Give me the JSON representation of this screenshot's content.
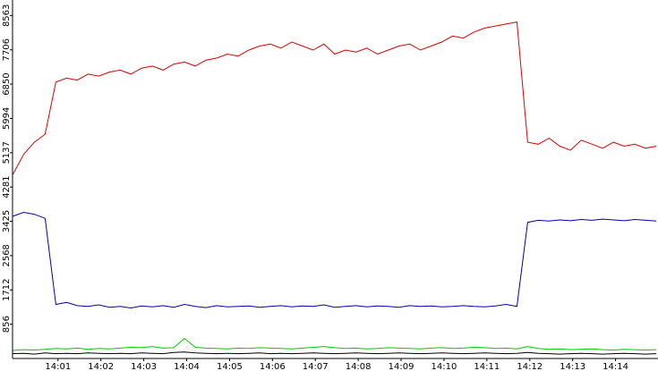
{
  "chart_data": {
    "type": "line",
    "x": [
      -0.05,
      0.2,
      0.45,
      0.7,
      0.95,
      1.2,
      1.45,
      1.7,
      1.95,
      2.2,
      2.45,
      2.7,
      2.95,
      3.2,
      3.45,
      3.7,
      3.95,
      4.2,
      4.45,
      4.7,
      4.95,
      5.2,
      5.45,
      5.7,
      5.95,
      6.2,
      6.45,
      6.7,
      6.95,
      7.2,
      7.45,
      7.7,
      7.95,
      8.2,
      8.45,
      8.7,
      8.95,
      9.2,
      9.45,
      9.7,
      9.95,
      10.2,
      10.45,
      10.7,
      10.95,
      11.2,
      11.45,
      11.7,
      11.95,
      12.2,
      12.45,
      12.7,
      12.95,
      13.2,
      13.45,
      13.7,
      13.95,
      14.2,
      14.45,
      14.7,
      14.95
    ],
    "series": [
      {
        "color": "#e00000",
        "values": [
          4600,
          5100,
          5400,
          5600,
          6900,
          7000,
          6950,
          7100,
          7050,
          7150,
          7200,
          7100,
          7250,
          7300,
          7200,
          7350,
          7400,
          7300,
          7450,
          7500,
          7600,
          7550,
          7700,
          7800,
          7850,
          7750,
          7900,
          7800,
          7700,
          7850,
          7600,
          7700,
          7650,
          7750,
          7600,
          7700,
          7800,
          7850,
          7700,
          7800,
          7900,
          8050,
          8000,
          8150,
          8250,
          8300,
          8350,
          8400,
          5400,
          5350,
          5500,
          5300,
          5200,
          5450,
          5350,
          5250,
          5400,
          5300,
          5350,
          5250,
          5300
        ]
      },
      {
        "color": "#0000b0",
        "values": [
          3550,
          3650,
          3600,
          3500,
          1350,
          1400,
          1320,
          1300,
          1340,
          1280,
          1300,
          1260,
          1310,
          1290,
          1320,
          1280,
          1350,
          1300,
          1270,
          1320,
          1290,
          1300,
          1310,
          1280,
          1300,
          1320,
          1290,
          1310,
          1300,
          1340,
          1280,
          1300,
          1320,
          1290,
          1310,
          1300,
          1280,
          1320,
          1300,
          1310,
          1290,
          1300,
          1320,
          1300,
          1290,
          1310,
          1350,
          1300,
          3400,
          3450,
          3430,
          3460,
          3440,
          3470,
          3450,
          3480,
          3460,
          3440,
          3470,
          3450,
          3430
        ]
      },
      {
        "color": "#00cc00",
        "values": [
          200,
          220,
          210,
          230,
          250,
          240,
          260,
          230,
          250,
          240,
          260,
          280,
          270,
          300,
          260,
          270,
          500,
          280,
          260,
          250,
          240,
          260,
          250,
          270,
          260,
          250,
          240,
          260,
          280,
          300,
          270,
          250,
          260,
          240,
          250,
          270,
          260,
          250,
          240,
          260,
          270,
          250,
          260,
          280,
          270,
          250,
          260,
          240,
          300,
          250,
          230,
          240,
          220,
          230,
          240,
          220,
          210,
          230,
          220,
          210,
          220
        ]
      },
      {
        "color": "#000000",
        "values": [
          120,
          130,
          110,
          140,
          120,
          130,
          120,
          140,
          130,
          120,
          130,
          120,
          140,
          130,
          120,
          150,
          160,
          140,
          130,
          120,
          130,
          120,
          130,
          140,
          120,
          130,
          120,
          130,
          140,
          130,
          120,
          130,
          140,
          130,
          120,
          130,
          140,
          130,
          120,
          130,
          140,
          130,
          120,
          130,
          140,
          130,
          120,
          130,
          150,
          130,
          120,
          110,
          120,
          130,
          120,
          110,
          120,
          130,
          120,
          110,
          120
        ]
      }
    ],
    "xlim": [
      -0.06,
      14.99
    ],
    "xticks": [
      {
        "value": 1,
        "label": "14:01"
      },
      {
        "value": 2,
        "label": "14:02"
      },
      {
        "value": 3,
        "label": "14:03"
      },
      {
        "value": 4,
        "label": "14:04"
      },
      {
        "value": 5,
        "label": "14:05"
      },
      {
        "value": 6,
        "label": "14:06"
      },
      {
        "value": 7,
        "label": "14:07"
      },
      {
        "value": 8,
        "label": "14:08"
      },
      {
        "value": 9,
        "label": "14:09"
      },
      {
        "value": 10,
        "label": "14:10"
      },
      {
        "value": 11,
        "label": "14:11"
      },
      {
        "value": 12,
        "label": "14:12"
      },
      {
        "value": 13,
        "label": "14:13"
      },
      {
        "value": 14,
        "label": "14:14"
      }
    ],
    "ylim": [
      0,
      8950
    ],
    "yticks": [
      856,
      1712,
      2568,
      3425,
      4281,
      5137,
      5994,
      6850,
      7706,
      8563
    ]
  }
}
